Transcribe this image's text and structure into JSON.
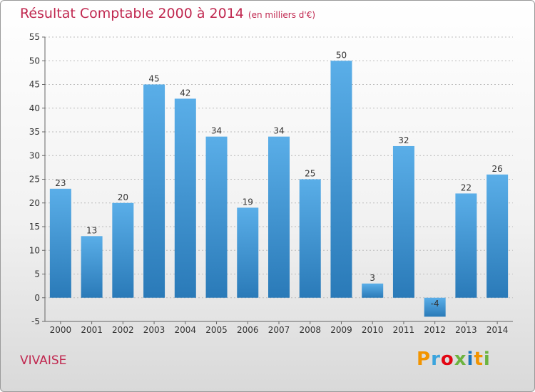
{
  "header": {
    "title": "Résultat Comptable 2000 à 2014",
    "subtitle": "(en milliers d'€)"
  },
  "footer": {
    "place": "VIVAISE",
    "logo": {
      "letters": [
        "P",
        "r",
        "o",
        "x",
        "i",
        "t",
        "i"
      ],
      "colors": [
        "#f29400",
        "#3ba4dd",
        "#e30613",
        "#6cb33f",
        "#1b75bc",
        "#f29400",
        "#6cb33f"
      ]
    }
  },
  "colors": {
    "bar_top": "#5aaee8",
    "bar_bottom": "#2a7ab8",
    "grid": "#bbbbbb",
    "accent": "#c0274f"
  },
  "chart_data": {
    "type": "bar",
    "categories": [
      "2000",
      "2001",
      "2002",
      "2003",
      "2004",
      "2005",
      "2006",
      "2007",
      "2008",
      "2009",
      "2010",
      "2011",
      "2012",
      "2013",
      "2014"
    ],
    "values": [
      23,
      13,
      20,
      45,
      42,
      34,
      19,
      34,
      25,
      50,
      3,
      32,
      -4,
      22,
      26
    ],
    "data_labels": [
      "23",
      "13",
      "20",
      "45",
      "42",
      "34",
      "19",
      "34",
      "25",
      "50",
      "3",
      "32",
      "-4",
      "22",
      "26"
    ],
    "ylim": [
      -5,
      55
    ],
    "yticks": [
      -5,
      0,
      5,
      10,
      15,
      20,
      25,
      30,
      35,
      40,
      45,
      50,
      55
    ],
    "grid": true
  }
}
